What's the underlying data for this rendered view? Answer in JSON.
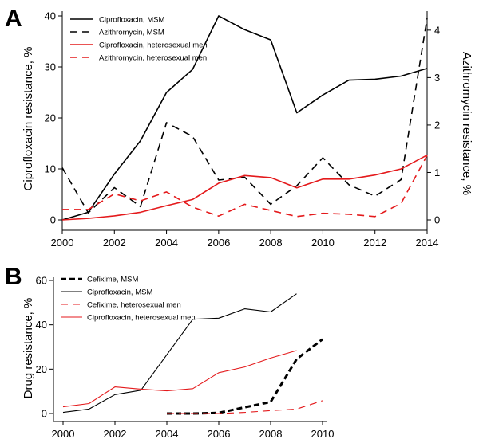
{
  "chart_data": [
    {
      "panel_label": "A",
      "type": "line",
      "xlabel": "",
      "ylabel": "Ciprofloxacin resistance, %",
      "y2label": "Azithromycin resistance, %",
      "xlim": [
        2000,
        2014
      ],
      "ylim": [
        0,
        40
      ],
      "y2lim": [
        0,
        4.3
      ],
      "xticks": [
        2000,
        2002,
        2004,
        2006,
        2008,
        2010,
        2012,
        2014
      ],
      "yticks": [
        0,
        10,
        20,
        30,
        40
      ],
      "y2ticks": [
        0,
        1,
        2,
        3,
        4
      ],
      "grid": false,
      "legend_position": "top-left",
      "series": [
        {
          "name": "Ciprofloxacin, MSM",
          "axis": "left",
          "color": "#000000",
          "dash": "solid",
          "x": [
            2000,
            2001,
            2002,
            2003,
            2004,
            2005,
            2006,
            2007,
            2008,
            2009,
            2010,
            2011,
            2012,
            2013,
            2014
          ],
          "y": [
            0,
            1.5,
            9,
            15.5,
            25,
            29.5,
            40,
            37.3,
            35.3,
            21,
            24.5,
            27.4,
            27.6,
            28.2,
            29.7
          ]
        },
        {
          "name": "Azithromycin, MSM",
          "axis": "right",
          "color": "#000000",
          "dash": "dashed",
          "x": [
            2000,
            2001,
            2002,
            2003,
            2004,
            2005,
            2006,
            2007,
            2008,
            2009,
            2010,
            2011,
            2012,
            2013,
            2014
          ],
          "y": [
            1.1,
            0.15,
            0.68,
            0.28,
            2.05,
            1.76,
            0.84,
            0.9,
            0.33,
            0.72,
            1.31,
            0.74,
            0.5,
            0.85,
            4.25
          ]
        },
        {
          "name": "Ciprofloxacin, heterosexual men",
          "axis": "left",
          "color": "#e41a1c",
          "dash": "solid",
          "x": [
            2000,
            2001,
            2002,
            2003,
            2004,
            2005,
            2006,
            2007,
            2008,
            2009,
            2010,
            2011,
            2012,
            2013,
            2014
          ],
          "y": [
            0,
            0.3,
            0.8,
            1.5,
            2.8,
            4,
            7.2,
            8.7,
            8.3,
            6.3,
            8,
            8,
            8.8,
            10,
            12.7
          ]
        },
        {
          "name": "Azithromycin, heterosexual men",
          "axis": "right",
          "color": "#e41a1c",
          "dash": "dashed",
          "x": [
            2000,
            2001,
            2002,
            2003,
            2004,
            2005,
            2006,
            2007,
            2008,
            2009,
            2010,
            2011,
            2012,
            2013,
            2014
          ],
          "y": [
            0.22,
            0.22,
            0.55,
            0.4,
            0.59,
            0.27,
            0.08,
            0.33,
            0.2,
            0.07,
            0.14,
            0.12,
            0.07,
            0.35,
            1.36
          ]
        }
      ]
    },
    {
      "panel_label": "B",
      "type": "line",
      "xlabel": "",
      "ylabel": "Drug resistance, %",
      "xlim": [
        2000,
        2010
      ],
      "ylim": [
        0,
        60
      ],
      "xticks": [
        2000,
        2002,
        2004,
        2006,
        2008,
        2010
      ],
      "yticks": [
        0,
        20,
        40,
        60
      ],
      "grid": false,
      "legend_position": "top-left",
      "series": [
        {
          "name": "Cefixime, MSM",
          "color": "#000000",
          "dash": "bold-dashed",
          "x": [
            2004,
            2005,
            2006,
            2007,
            2008,
            2009,
            2010
          ],
          "y": [
            0,
            0,
            0.3,
            2.8,
            5.2,
            24.5,
            33.5
          ]
        },
        {
          "name": "Ciprofloxacin, MSM",
          "color": "#000000",
          "dash": "solid",
          "x": [
            2000,
            2001,
            2002,
            2003,
            2004,
            2005,
            2006,
            2007,
            2008,
            2009
          ],
          "y": [
            0.5,
            2,
            8.5,
            10.5,
            26.5,
            42.5,
            43,
            47.2,
            45.8,
            54
          ]
        },
        {
          "name": "Cefixime, heterosexual men",
          "color": "#e41a1c",
          "dash": "dashed",
          "x": [
            2004,
            2005,
            2006,
            2007,
            2008,
            2009,
            2010
          ],
          "y": [
            0,
            0,
            0,
            0.5,
            1.3,
            2,
            5.8
          ]
        },
        {
          "name": "Ciprofloxacin, heterosexual men",
          "color": "#e41a1c",
          "dash": "solid",
          "x": [
            2000,
            2001,
            2002,
            2003,
            2004,
            2005,
            2006,
            2007,
            2008,
            2009
          ],
          "y": [
            3,
            4.5,
            12,
            11,
            10.2,
            11.2,
            18.4,
            21,
            25,
            28.4
          ]
        }
      ]
    }
  ]
}
